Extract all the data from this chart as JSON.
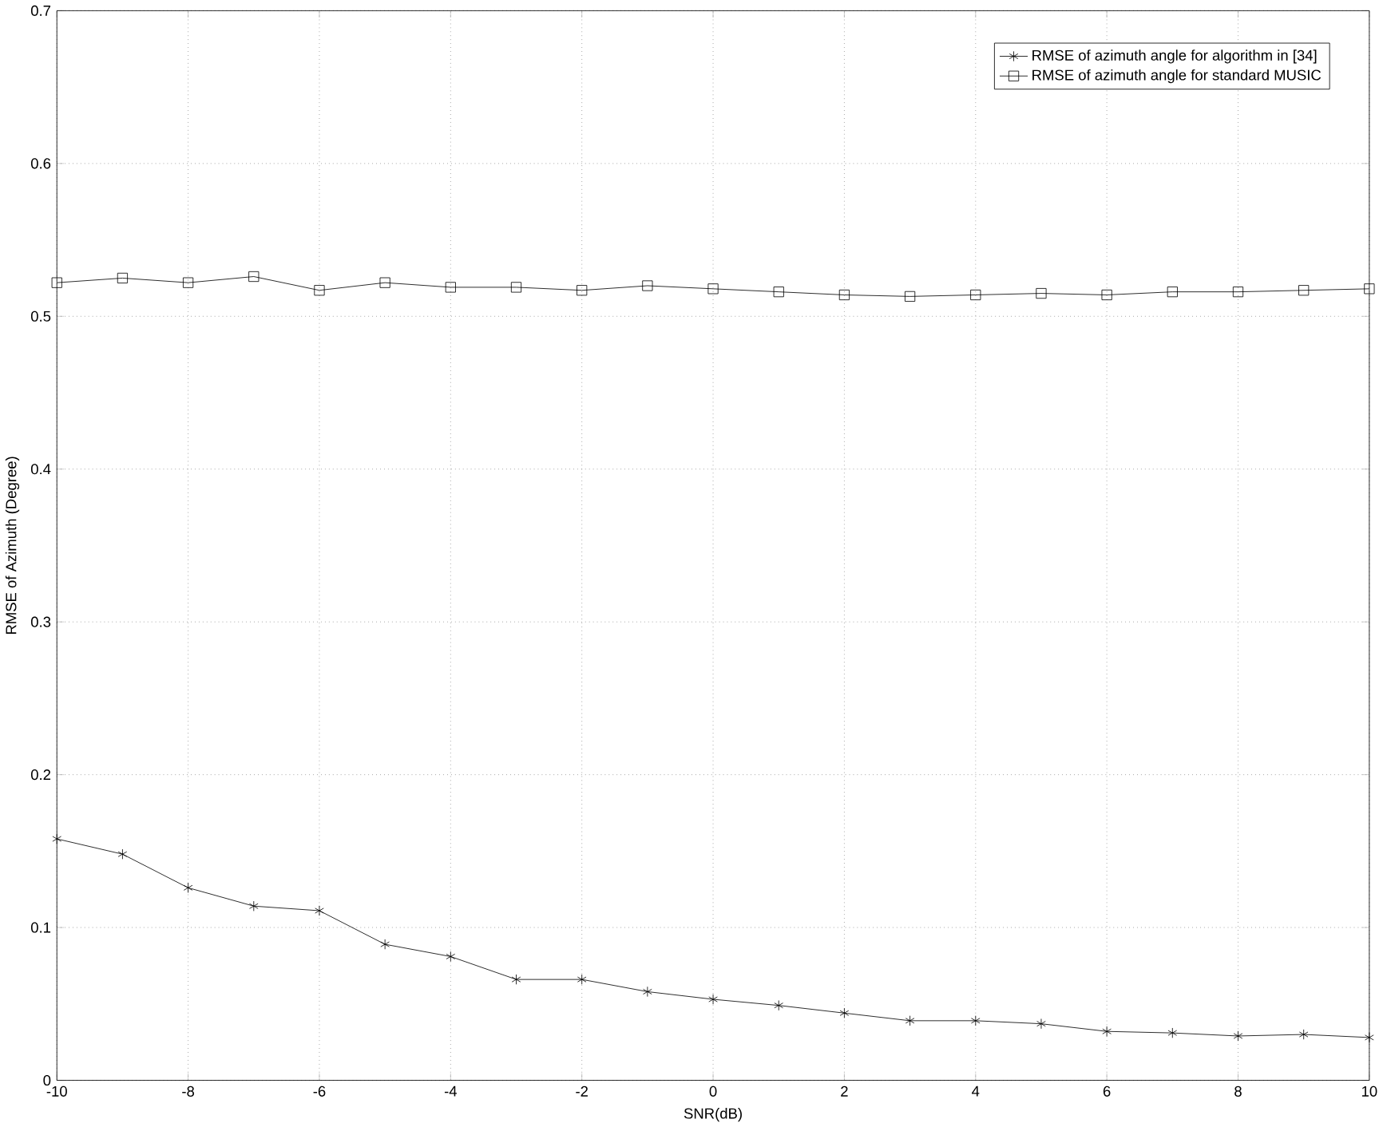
{
  "chart_data": {
    "type": "line",
    "xlabel": "SNR(dB)",
    "ylabel": "RMSE of Azimuth (Degree)",
    "x": [
      -10,
      -9,
      -8,
      -7,
      -6,
      -5,
      -4,
      -3,
      -2,
      -1,
      0,
      1,
      2,
      3,
      4,
      5,
      6,
      7,
      8,
      9,
      10
    ],
    "series": [
      {
        "name": "RMSE of azimuth angle for algorithm in [34]",
        "color": "#000000",
        "marker": "cross",
        "values": [
          0.158,
          0.148,
          0.126,
          0.114,
          0.111,
          0.089,
          0.081,
          0.066,
          0.066,
          0.058,
          0.053,
          0.049,
          0.044,
          0.039,
          0.039,
          0.037,
          0.032,
          0.031,
          0.029,
          0.03,
          0.028
        ]
      },
      {
        "name": "RMSE of azimuth angle for standard MUSIC",
        "color": "#000000",
        "marker": "square",
        "values": [
          0.522,
          0.525,
          0.522,
          0.526,
          0.517,
          0.522,
          0.519,
          0.519,
          0.517,
          0.52,
          0.518,
          0.516,
          0.514,
          0.513,
          0.514,
          0.515,
          0.514,
          0.516,
          0.516,
          0.517,
          0.518
        ]
      }
    ],
    "xlim": [
      -10,
      10
    ],
    "xticks": [
      -10,
      -8,
      -6,
      -4,
      -2,
      0,
      2,
      4,
      6,
      8,
      10
    ],
    "ylim": [
      0,
      0.7
    ],
    "yticks": [
      0,
      0.1,
      0.2,
      0.3,
      0.4,
      0.5,
      0.6,
      0.7
    ],
    "grid": true,
    "legend": "top right",
    "line_style": "solid"
  }
}
